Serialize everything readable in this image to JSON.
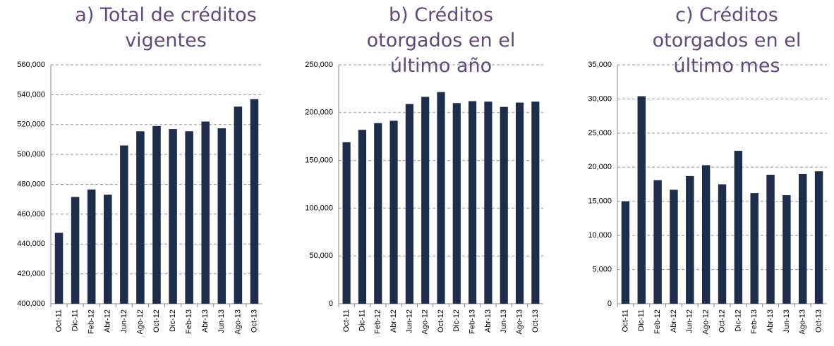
{
  "chart_data": [
    {
      "type": "bar",
      "title": "a)   Total de créditos vigentes",
      "color": "#1f2d4d",
      "grid": true,
      "categories": [
        "Oct-11",
        "Dic-11",
        "Feb-12",
        "Abr-12",
        "Jun-12",
        "Ago-12",
        "Oct-12",
        "Dic-12",
        "Feb-13",
        "Abr-13",
        "Jun-13",
        "Ago-13",
        "Oct-13"
      ],
      "values": [
        447500,
        471500,
        476500,
        473000,
        506000,
        515500,
        519000,
        517000,
        515500,
        522000,
        517500,
        532000,
        537000
      ],
      "ylim": [
        400000,
        560000
      ],
      "yticks": [
        {
          "value": 400000,
          "label": "400,000"
        },
        {
          "value": 420000,
          "label": "420,000"
        },
        {
          "value": 440000,
          "label": "440,000"
        },
        {
          "value": 460000,
          "label": "460,000"
        },
        {
          "value": 480000,
          "label": "480,000"
        },
        {
          "value": 500000,
          "label": "500,000"
        },
        {
          "value": 520000,
          "label": "520,000"
        },
        {
          "value": 540000,
          "label": "540,000"
        },
        {
          "value": 560000,
          "label": "560,000"
        }
      ]
    },
    {
      "type": "bar",
      "title": "b)   Créditos otorgados en el último año",
      "color": "#1f2d4d",
      "grid": true,
      "categories": [
        "Oct-11",
        "Dic-11",
        "Feb-12",
        "Abr-12",
        "Jun-12",
        "Ago-12",
        "Oct-12",
        "Dic-12",
        "Feb-13",
        "Abr-13",
        "Jun-13",
        "Ago-13",
        "Oct-13"
      ],
      "values": [
        169000,
        182000,
        189000,
        191500,
        209000,
        216500,
        221500,
        210000,
        212000,
        211500,
        206000,
        210500,
        211500
      ],
      "ylim": [
        0,
        250000
      ],
      "yticks": [
        0,
        {
          "value": 50000,
          "label": "50,000"
        },
        {
          "value": 100000,
          "label": "100,000"
        },
        {
          "value": 150000,
          "label": "150,000"
        },
        {
          "value": 200000,
          "label": "200,000"
        },
        {
          "value": 250000,
          "label": "250,000"
        }
      ]
    },
    {
      "type": "bar",
      "title": "c)   Créditos otorgados en el último mes",
      "color": "#1f2d4d",
      "grid": true,
      "categories": [
        "Oct-11",
        "Dic-11",
        "Feb-12",
        "Abr-12",
        "Jun-12",
        "Ago-12",
        "Oct-12",
        "Dic-12",
        "Feb-13",
        "Abr-13",
        "Jun-13",
        "Ago-13",
        "Oct-13"
      ],
      "values": [
        15000,
        30400,
        18100,
        16700,
        18700,
        20300,
        17500,
        22400,
        16200,
        18900,
        15900,
        19000,
        19400
      ],
      "ylim": [
        0,
        35000
      ],
      "yticks": [
        0,
        {
          "value": 5000,
          "label": "5,000"
        },
        {
          "value": 10000,
          "label": "10,000"
        },
        {
          "value": 15000,
          "label": "15,000"
        },
        {
          "value": 20000,
          "label": "20,000"
        },
        {
          "value": 25000,
          "label": "25,000"
        },
        {
          "value": 30000,
          "label": "30,000"
        },
        {
          "value": 35000,
          "label": "35,000"
        }
      ]
    }
  ]
}
